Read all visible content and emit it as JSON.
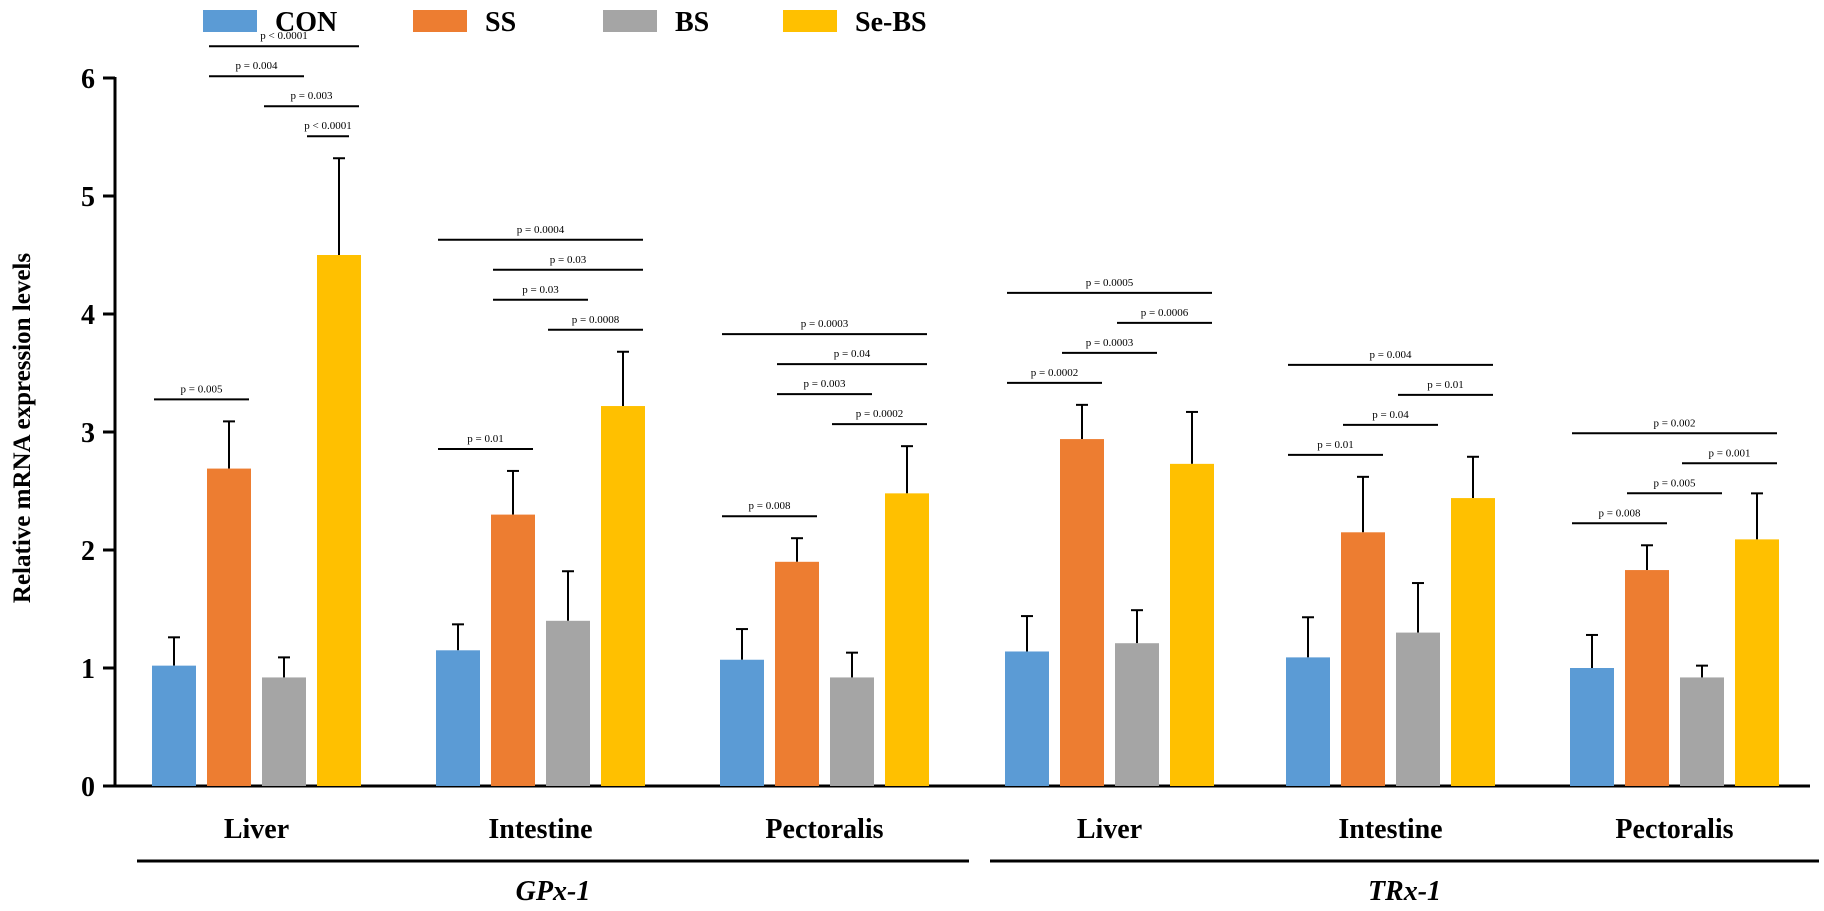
{
  "chart_data": {
    "type": "bar",
    "ylabel": "Relative mRNA expression levels",
    "ylim": [
      0,
      6
    ],
    "yticks": [
      "0",
      "1",
      "2",
      "3",
      "4",
      "5",
      "6"
    ],
    "legend_position": "top-left",
    "series": [
      {
        "name": "CON",
        "color": "#5B9BD5"
      },
      {
        "name": "SS",
        "color": "#ED7D31"
      },
      {
        "name": "BS",
        "color": "#A5A5A5"
      },
      {
        "name": "Se-BS",
        "color": "#FFC000"
      }
    ],
    "gene_groups": [
      {
        "label": "GPx-1",
        "first_tissue": 0,
        "last_tissue": 2
      },
      {
        "label": "TRx-1",
        "first_tissue": 3,
        "last_tissue": 5
      }
    ],
    "tissues": [
      {
        "label": "Liver",
        "values": [
          1.02,
          2.69,
          0.92,
          4.5
        ],
        "errors": [
          0.24,
          0.4,
          0.17,
          0.82
        ],
        "comparisons": [
          {
            "from": 1,
            "to": 3,
            "p": "p < 0.0001"
          },
          {
            "from": 2,
            "to": 3,
            "p": "p = 0.003"
          },
          {
            "from": 3,
            "to": 3,
            "p": "p < 0.0001"
          },
          {
            "from": 0,
            "to": 1,
            "p": "p = 0.005"
          },
          {
            "from": 1,
            "to": 2,
            "p": "p = 0.004"
          }
        ]
      },
      {
        "label": "Intestine",
        "values": [
          1.15,
          2.3,
          1.4,
          3.22
        ],
        "errors": [
          0.22,
          0.37,
          0.42,
          0.46
        ],
        "comparisons": [
          {
            "from": 0,
            "to": 3,
            "p": "p = 0.0004"
          },
          {
            "from": 1,
            "to": 3,
            "p": "p = 0.03"
          },
          {
            "from": 2,
            "to": 3,
            "p": "p = 0.0008"
          },
          {
            "from": 0,
            "to": 1,
            "p": "p = 0.01"
          },
          {
            "from": 1,
            "to": 2,
            "p": "p = 0.03"
          }
        ]
      },
      {
        "label": "Pectoralis",
        "values": [
          1.07,
          1.9,
          0.92,
          2.48
        ],
        "errors": [
          0.26,
          0.2,
          0.21,
          0.4
        ],
        "comparisons": [
          {
            "from": 0,
            "to": 3,
            "p": "p = 0.0003"
          },
          {
            "from": 1,
            "to": 3,
            "p": "p = 0.04"
          },
          {
            "from": 2,
            "to": 3,
            "p": "p = 0.0002"
          },
          {
            "from": 0,
            "to": 1,
            "p": "p = 0.008"
          },
          {
            "from": 1,
            "to": 2,
            "p": "p = 0.003"
          }
        ]
      },
      {
        "label": "Liver",
        "values": [
          1.14,
          2.94,
          1.21,
          2.73
        ],
        "errors": [
          0.3,
          0.29,
          0.28,
          0.44
        ],
        "comparisons": [
          {
            "from": 0,
            "to": 3,
            "p": "p = 0.0005"
          },
          {
            "from": 0,
            "to": 1,
            "p": "p = 0.0002"
          },
          {
            "from": 1,
            "to": 2,
            "p": "p = 0.0003"
          },
          {
            "from": 2,
            "to": 3,
            "p": "p = 0.0006"
          }
        ]
      },
      {
        "label": "Intestine",
        "values": [
          1.09,
          2.15,
          1.3,
          2.44
        ],
        "errors": [
          0.34,
          0.47,
          0.42,
          0.35
        ],
        "comparisons": [
          {
            "from": 0,
            "to": 3,
            "p": "p = 0.004"
          },
          {
            "from": 0,
            "to": 1,
            "p": "p = 0.01"
          },
          {
            "from": 1,
            "to": 2,
            "p": "p = 0.04"
          },
          {
            "from": 2,
            "to": 3,
            "p": "p = 0.01"
          }
        ]
      },
      {
        "label": "Pectoralis",
        "values": [
          1.0,
          1.83,
          0.92,
          2.09
        ],
        "errors": [
          0.28,
          0.21,
          0.1,
          0.39
        ],
        "comparisons": [
          {
            "from": 0,
            "to": 3,
            "p": "p = 0.002"
          },
          {
            "from": 0,
            "to": 1,
            "p": "p = 0.008"
          },
          {
            "from": 1,
            "to": 2,
            "p": "p = 0.005"
          },
          {
            "from": 2,
            "to": 3,
            "p": "p = 0.001"
          }
        ]
      }
    ]
  }
}
